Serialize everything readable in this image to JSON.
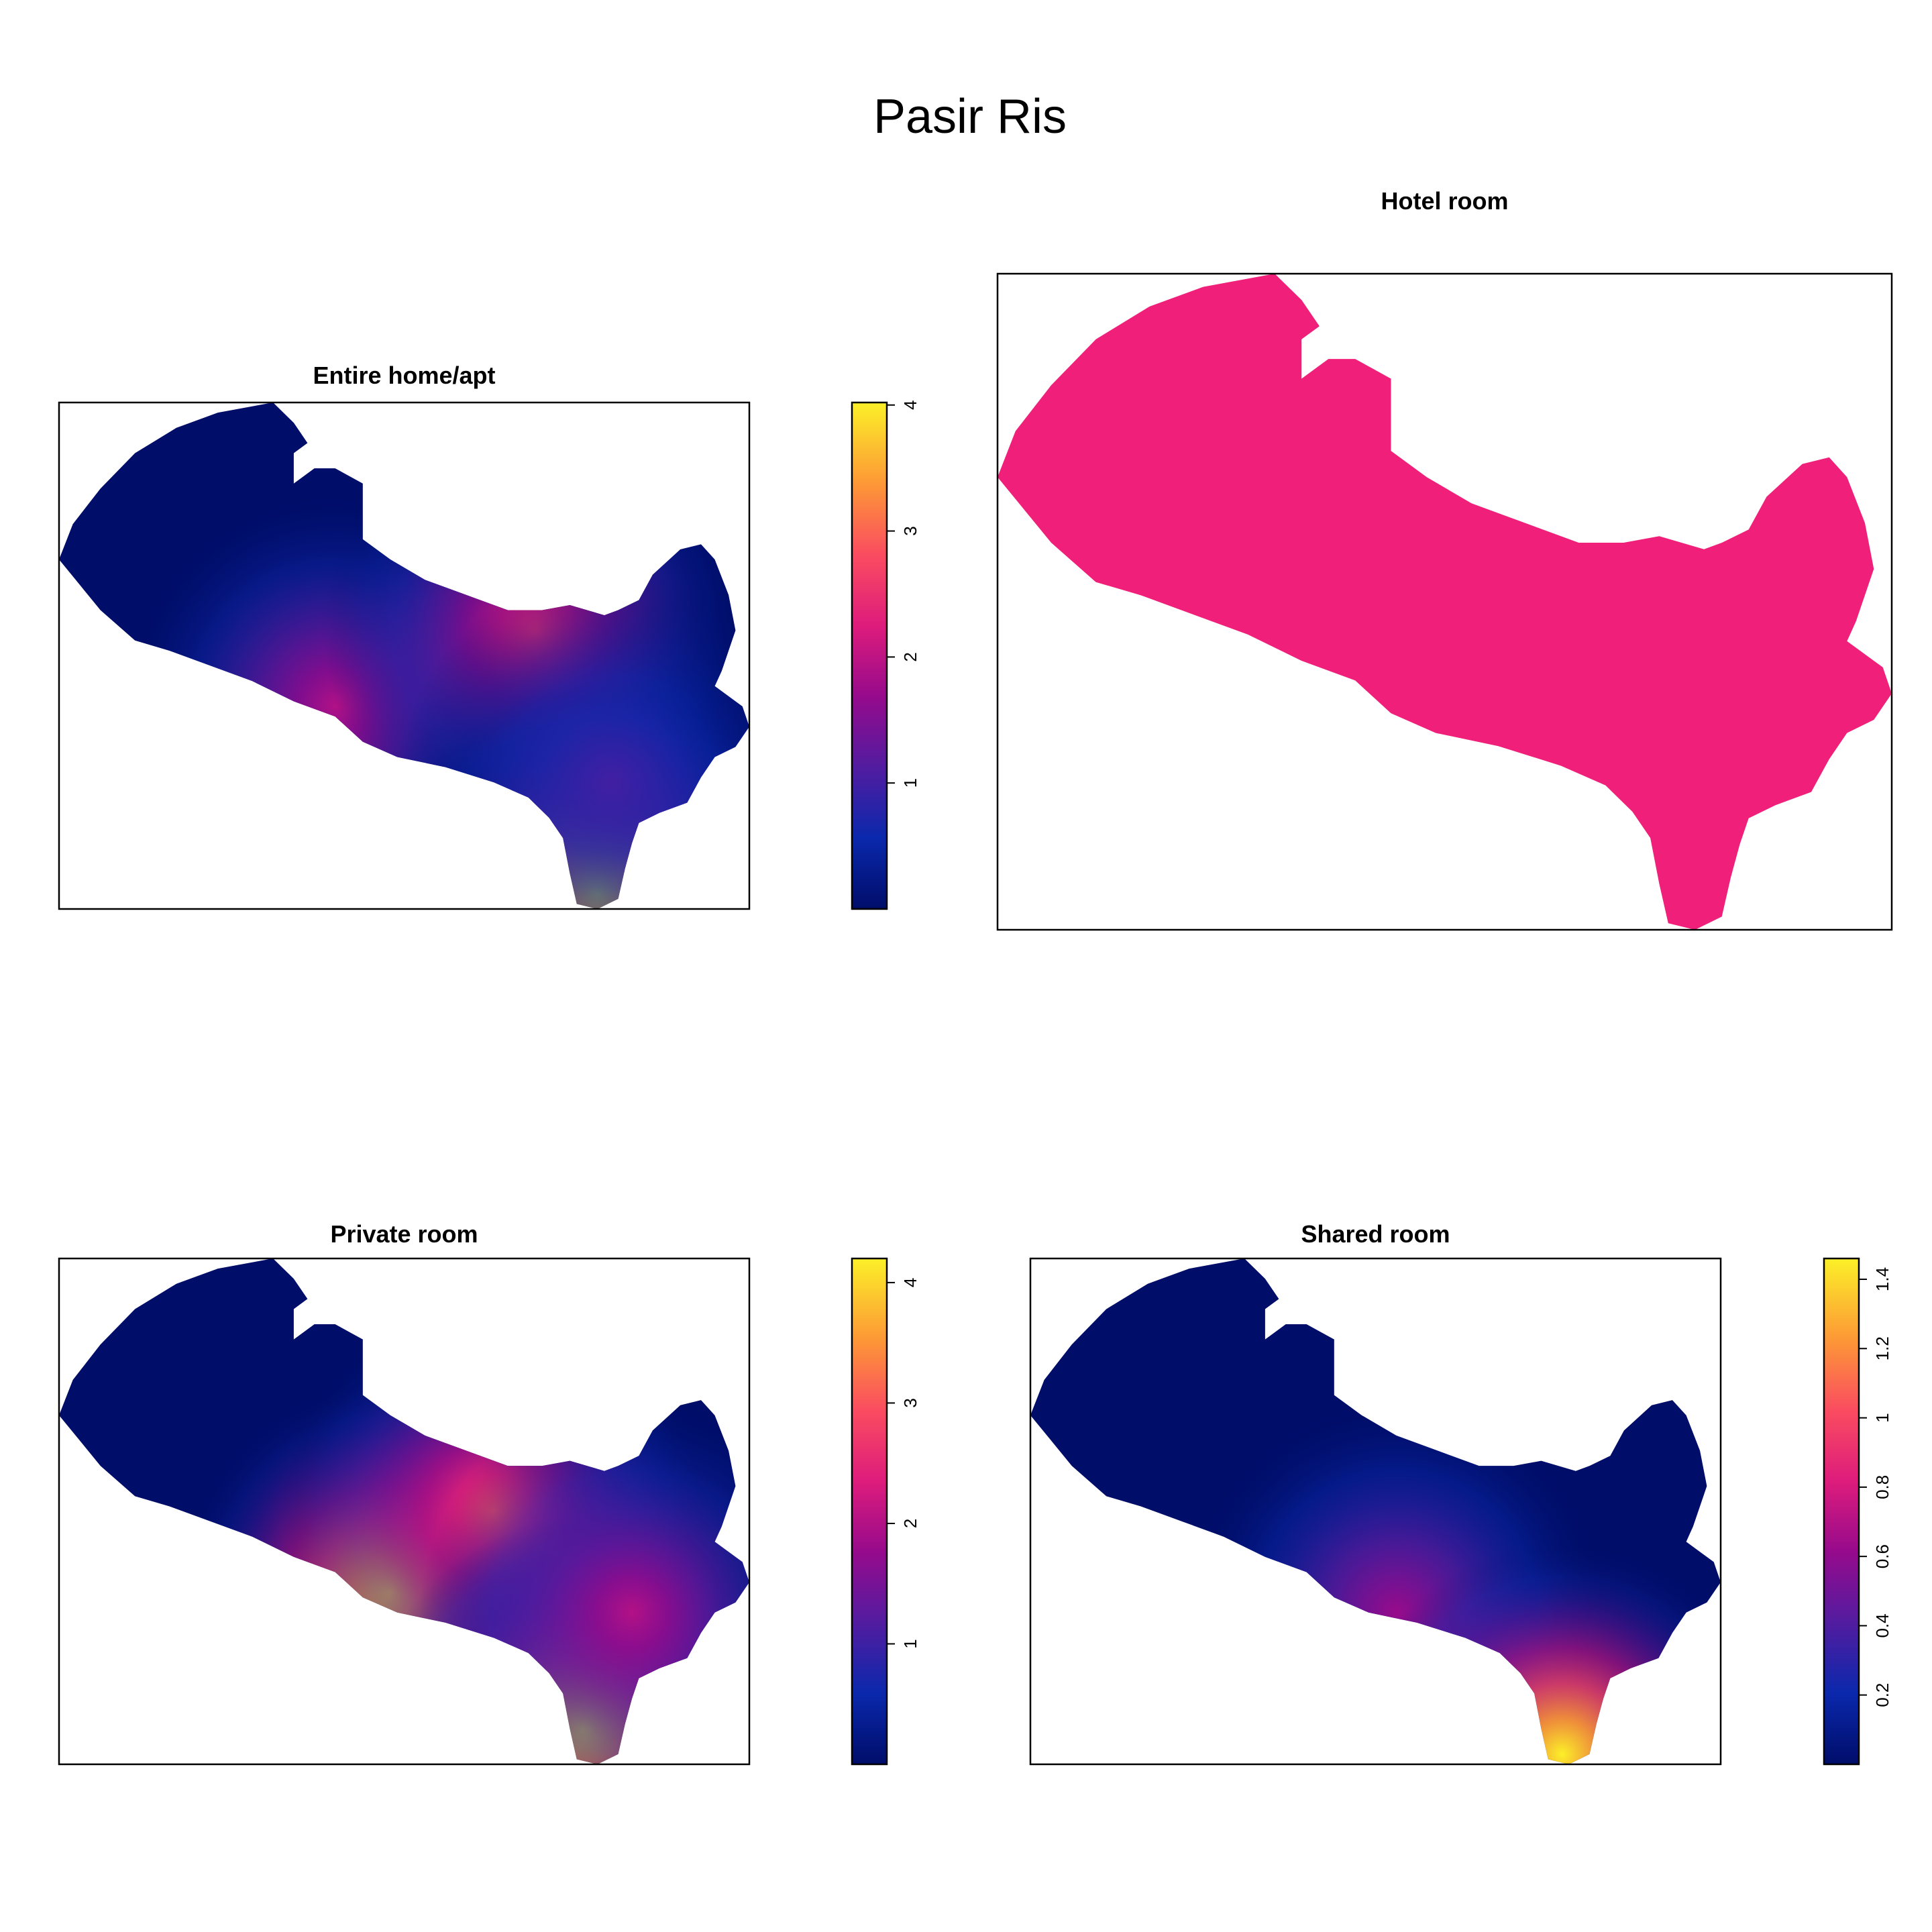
{
  "title": "Pasir Ris",
  "chart_data": [
    {
      "type": "heatmap",
      "title": "Entire home/apt",
      "legend": {
        "range": [
          0,
          4.02
        ],
        "ticks": [
          1,
          2,
          3,
          4
        ],
        "tick_labels": [
          "1",
          "2",
          "3",
          "4"
        ]
      },
      "hotspots": [
        {
          "x": 0.4,
          "y": 0.6,
          "value": 1.9
        },
        {
          "x": 0.69,
          "y": 0.45,
          "value": 2.4
        },
        {
          "x": 0.78,
          "y": 0.97,
          "value": 4.0
        },
        {
          "x": 0.8,
          "y": 0.75,
          "value": 1.0
        }
      ]
    },
    {
      "type": "heatmap",
      "title": "Hotel room",
      "legend": null,
      "constant_value": 2,
      "fill_color": "#F0207A"
    },
    {
      "type": "heatmap",
      "title": "Private room",
      "legend": {
        "range": [
          0,
          4.2
        ],
        "ticks": [
          1,
          2,
          3,
          4
        ],
        "tick_labels": [
          "1",
          "2",
          "3",
          "4"
        ]
      },
      "hotspots": [
        {
          "x": 0.48,
          "y": 0.66,
          "value": 4.1
        },
        {
          "x": 0.63,
          "y": 0.5,
          "value": 2.9
        },
        {
          "x": 0.76,
          "y": 0.93,
          "value": 4.1
        },
        {
          "x": 0.83,
          "y": 0.7,
          "value": 2.0
        }
      ]
    },
    {
      "type": "heatmap",
      "title": "Shared room",
      "legend": {
        "range": [
          0,
          1.46
        ],
        "ticks": [
          0.2,
          0.4,
          0.6,
          0.8,
          1,
          1.2,
          1.4
        ],
        "tick_labels": [
          "0.2",
          "0.4",
          "0.6",
          "0.8",
          "1",
          "1.2",
          "1.4"
        ]
      },
      "hotspots": [
        {
          "x": 0.53,
          "y": 0.7,
          "value": 0.62
        },
        {
          "x": 0.77,
          "y": 0.98,
          "value": 1.46
        }
      ]
    }
  ]
}
